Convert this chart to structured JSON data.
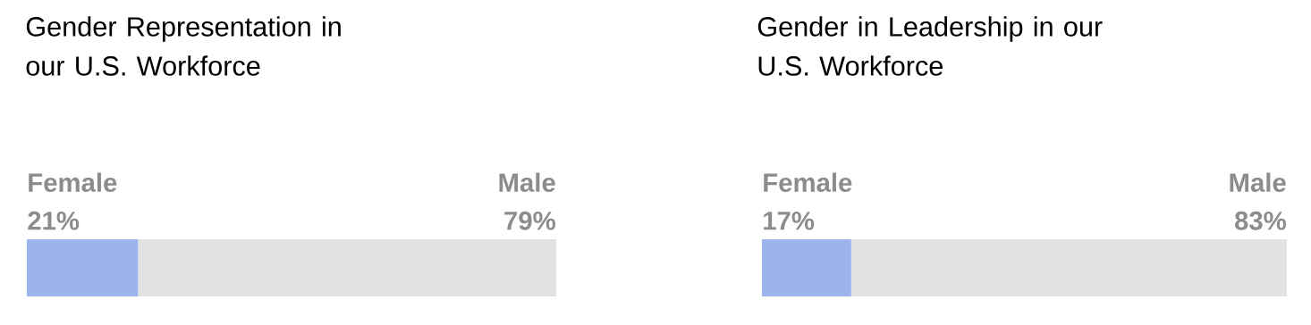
{
  "chart_data": [
    {
      "type": "bar",
      "orientation": "horizontal",
      "stacked": true,
      "title": "Gender Representation in our U.S. Workforce",
      "categories": [
        null
      ],
      "tick_labels": false,
      "series": [
        {
          "name": "Female",
          "color": "#9cb4eb",
          "values": [
            21
          ],
          "value_labels": [
            "21%"
          ]
        },
        {
          "name": "Male",
          "color": "#e2e2e2",
          "values": [
            79
          ],
          "value_labels": [
            "79%"
          ]
        }
      ]
    },
    {
      "type": "bar",
      "orientation": "horizontal",
      "stacked": true,
      "title": "Gender in Leadership in our U.S. Workforce",
      "categories": [
        null
      ],
      "tick_labels": false,
      "series": [
        {
          "name": "Female",
          "color": "#9cb4eb",
          "values": [
            17
          ],
          "value_labels": [
            "17%"
          ]
        },
        {
          "name": "Male",
          "color": "#e2e2e2",
          "values": [
            83
          ],
          "value_labels": [
            "83%"
          ]
        }
      ]
    }
  ]
}
